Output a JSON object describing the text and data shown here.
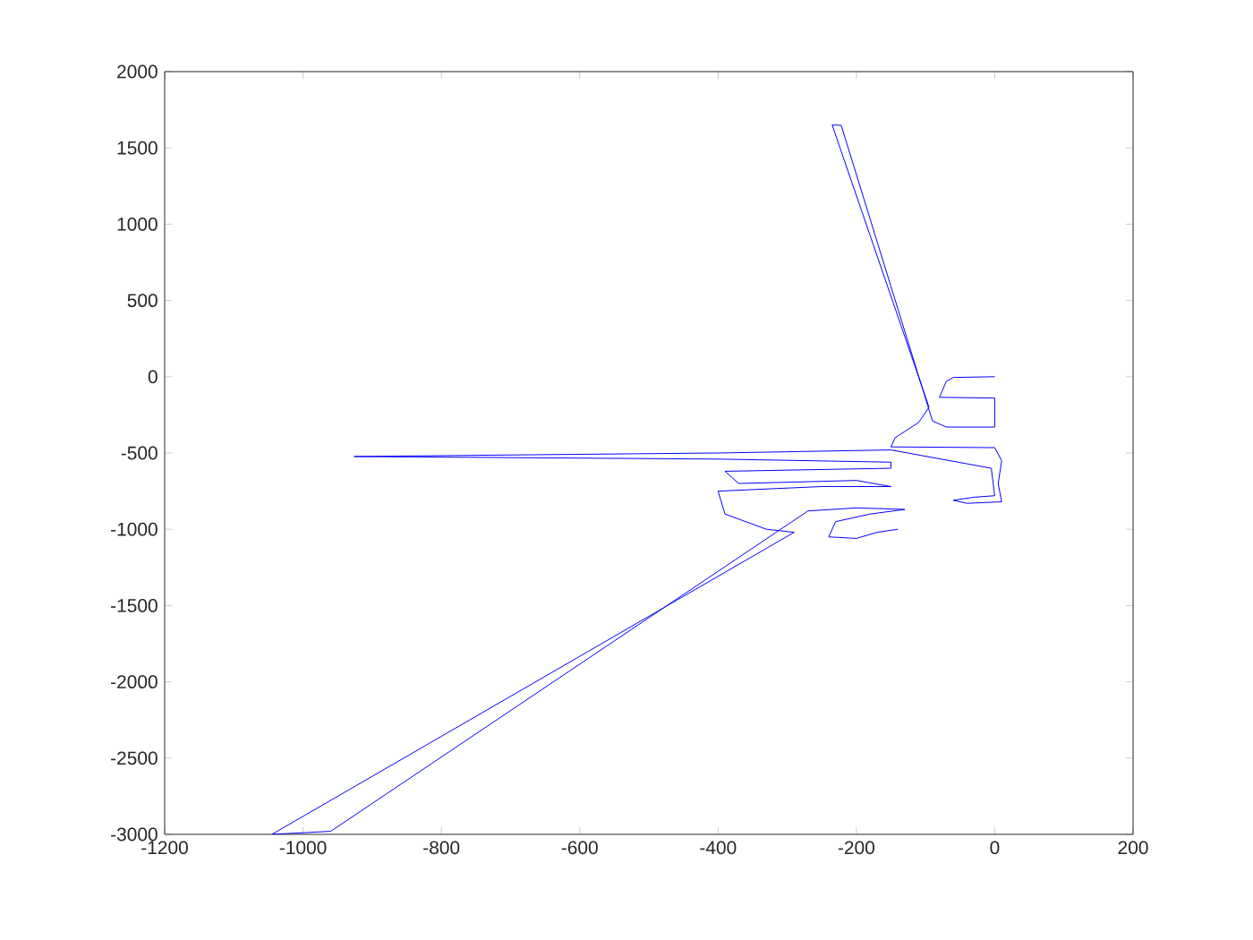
{
  "chart_data": {
    "type": "line",
    "xlim": [
      -1200,
      200
    ],
    "ylim": [
      -3000,
      2000
    ],
    "xticks": [
      -1200,
      -1000,
      -800,
      -600,
      -400,
      -200,
      0,
      200
    ],
    "yticks": [
      -3000,
      -2500,
      -2000,
      -1500,
      -1000,
      -500,
      0,
      500,
      1000,
      1500,
      2000
    ],
    "grid": false,
    "series": [
      {
        "color": "#0000ff",
        "x": [
          0,
          -60,
          -70,
          -80,
          0,
          0,
          -70,
          -90,
          -222,
          -235,
          -95,
          -110,
          -144,
          -150,
          0,
          10,
          5,
          10,
          -40,
          -60,
          -30,
          0,
          -5,
          -150,
          -400,
          -926,
          -400,
          -150,
          -150,
          -390,
          -370,
          -200,
          -150,
          -250,
          -400,
          -390,
          -330,
          -290,
          -1045,
          -960,
          -270,
          -200,
          -130,
          -180,
          -230,
          -240,
          -200,
          -170,
          -140
        ],
        "values": [
          0,
          -5,
          -30,
          -135,
          -140,
          -330,
          -330,
          -290,
          1648,
          1650,
          -200,
          -300,
          -400,
          -460,
          -465,
          -550,
          -700,
          -820,
          -830,
          -810,
          -790,
          -780,
          -600,
          -480,
          -500,
          -523,
          -540,
          -560,
          -600,
          -620,
          -700,
          -680,
          -720,
          -720,
          -750,
          -900,
          -1000,
          -1020,
          -3000,
          -2980,
          -880,
          -860,
          -870,
          -900,
          -950,
          -1050,
          -1060,
          -1020,
          -1000
        ]
      }
    ]
  }
}
